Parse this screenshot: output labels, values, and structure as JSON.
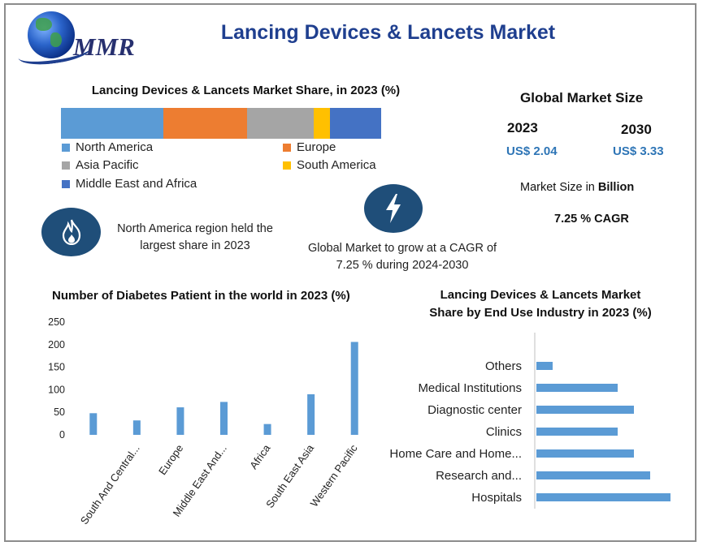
{
  "header": {
    "logo_text": "MMR",
    "title": "Lancing Devices & Lancets Market"
  },
  "share_section": {
    "title": "Lancing Devices & Lancets Market Share, in 2023 (%)",
    "legend": [
      {
        "label": "North America",
        "color": "#5b9bd5"
      },
      {
        "label": "Europe",
        "color": "#ed7d31"
      },
      {
        "label": "Asia Pacific",
        "color": "#a5a5a5"
      },
      {
        "label": "South America",
        "color": "#ffc000"
      },
      {
        "label": "Middle East and Africa",
        "color": "#4472c4"
      }
    ]
  },
  "market_size": {
    "title": "Global Market Size",
    "year_a": "2023",
    "year_b": "2030",
    "value_a": "US$ 2.04",
    "value_b": "US$ 3.33",
    "unit_note_prefix": "Market Size in ",
    "unit_note_bold": "Billion",
    "cagr": "7.25 % CAGR"
  },
  "callouts": {
    "region": "North America region held the largest share in 2023",
    "growth": "Global Market to grow at a CAGR of 7.25 % during 2024-2030",
    "flame_icon": "flame-icon",
    "bolt_icon": "lightning-icon"
  },
  "chart_data": [
    {
      "type": "bar",
      "orientation": "horizontal-stacked",
      "title": "Lancing Devices & Lancets Market Share, in 2023 (%)",
      "categories": [
        "North America",
        "Europe",
        "Asia Pacific",
        "South America",
        "Middle East and Africa"
      ],
      "values": [
        32,
        26,
        21,
        5,
        16
      ],
      "colors": [
        "#5b9bd5",
        "#ed7d31",
        "#a5a5a5",
        "#ffc000",
        "#4472c4"
      ]
    },
    {
      "type": "bar",
      "title": "Number of Diabetes Patient in the world in 2023 (%)",
      "categories": [
        "South And Central...",
        "Europe",
        "Middle East And...",
        "Africa",
        "South East Asia",
        "Western Pacific"
      ],
      "x_positions": [
        0,
        1,
        2,
        3,
        4,
        5,
        6
      ],
      "all_bars": [
        {
          "label": "",
          "value": 48
        },
        {
          "label": "South And Central...",
          "value": 32
        },
        {
          "label": "Europe",
          "value": 61
        },
        {
          "label": "Middle East And...",
          "value": 73
        },
        {
          "label": "Africa",
          "value": 24
        },
        {
          "label": "South East Asia",
          "value": 90
        },
        {
          "label": "Western Pacific",
          "value": 206
        }
      ],
      "yticks": [
        "0",
        "50",
        "100",
        "150",
        "200",
        "250"
      ],
      "ylim": [
        0,
        250
      ],
      "color": "#5b9bd5"
    },
    {
      "type": "bar",
      "orientation": "horizontal",
      "title": "Lancing Devices & Lancets Market Share by End Use Industry in 2023 (%)",
      "categories": [
        "Others",
        "Medical Institutions",
        "Diagnostic center",
        "Clinics",
        "Home Care and Home...",
        "Research and...",
        "Hospitals"
      ],
      "values": [
        2,
        10,
        12,
        10,
        12,
        14,
        16.5
      ],
      "xlim": [
        0,
        18
      ],
      "color": "#5b9bd5"
    }
  ],
  "bar_chart_title": "Number of Diabetes Patient in the world in 2023 (%)",
  "hbar_chart_title_line1": "Lancing Devices & Lancets Market",
  "hbar_chart_title_line2": "Share by End Use Industry in 2023 (%)"
}
